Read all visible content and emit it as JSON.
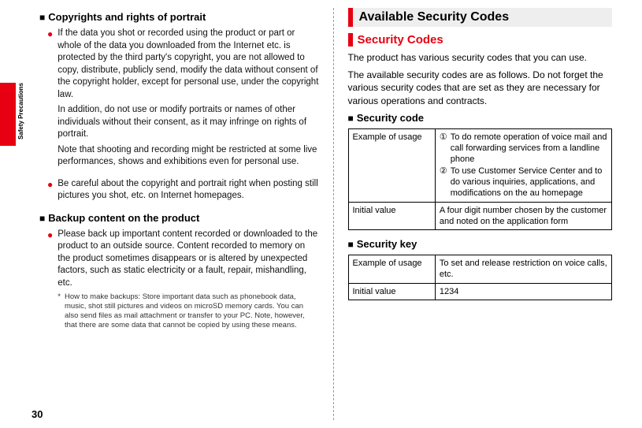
{
  "colors": {
    "accent": "#e60012",
    "section_bg": "#eeeeee",
    "text": "#111111",
    "divider": "#999999"
  },
  "side_label": "Safety Precautions",
  "page_number": "30",
  "left": {
    "copyrights": {
      "heading": "Copyrights and rights of portrait",
      "b1p1": "If the data you shot or recorded using the product or part or whole of the data you downloaded from the Internet etc. is protected by the third party's copyright, you are not allowed to copy, distribute, publicly send, modify the data without consent of the copyright holder, except for personal use, under the copyright law.",
      "b1p2": "In addition, do not use or modify portraits or names of other individuals without their consent, as it may infringe on rights of portrait.",
      "b1p3": "Note that shooting and recording might be restricted at some live performances, shows and exhibitions even for personal use.",
      "b2": "Be careful about the copyright and portrait right when posting still pictures you shot, etc. on Internet homepages."
    },
    "backup": {
      "heading": "Backup content on the product",
      "b1": "Please back up important content recorded or downloaded to the product to an outside source. Content recorded to memory on the product sometimes disappears or is altered by unexpected factors, such as static electricity or a fault, repair, mishandling, etc.",
      "note": "How to make backups: Store important data such as phonebook data, music, shot still pictures and videos on microSD memory cards. You can also send files as mail attachment or transfer to your PC. Note, however, that there are some data that cannot be copied by using these means."
    }
  },
  "right": {
    "section_title": "Available Security Codes",
    "sub_title": "Security Codes",
    "intro1": "The product has various security codes that you can use.",
    "intro2": "The available security codes are as follows. Do not forget the various security codes that are set as they are necessary for various operations and contracts.",
    "sec_code": {
      "heading": "Security code",
      "row1_label": "Example of usage",
      "row1_c1_num": "①",
      "row1_c1": "To do remote operation of voice mail and call forwarding services from a landline phone",
      "row1_c2_num": "②",
      "row1_c2": "To use Customer Service Center and to do various inquiries, applications, and modifications on the au homepage",
      "row2_label": "Initial value",
      "row2_text": "A four digit number chosen by the customer and noted on the application form"
    },
    "sec_key": {
      "heading": "Security key",
      "row1_label": "Example of usage",
      "row1_text": "To set and release restriction on voice calls, etc.",
      "row2_label": "Initial value",
      "row2_text": "1234"
    }
  }
}
